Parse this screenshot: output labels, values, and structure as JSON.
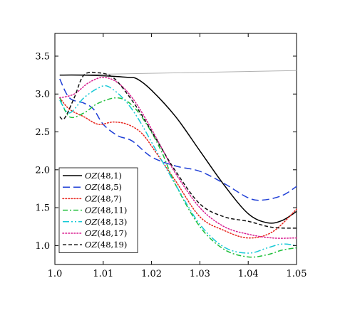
{
  "chart_data": {
    "type": "line",
    "title": "",
    "xlabel": "",
    "ylabel": "",
    "xlim": [
      1.0,
      1.05
    ],
    "ylim": [
      0.75,
      3.8
    ],
    "x_ticks": [
      1.0,
      1.01,
      1.02,
      1.03,
      1.04,
      1.05
    ],
    "x_tick_labels": [
      "1.0",
      "1.01",
      "1.02",
      "1.03",
      "1.04",
      "1.05"
    ],
    "y_ticks": [
      1.0,
      1.5,
      2.0,
      2.5,
      3.0,
      3.5
    ],
    "y_tick_labels": [
      "1.0",
      "1.5",
      "2.0",
      "2.5",
      "3.0",
      "3.5"
    ],
    "grid": false,
    "legend_position": "lower-left",
    "reference_line": {
      "color": "#b0b0b0",
      "x": [
        1.001,
        1.05
      ],
      "y": [
        3.25,
        3.31
      ]
    },
    "series": [
      {
        "name": "OZ(48,1)",
        "name_italic": "OZ",
        "name_rest": "(48,1)",
        "color": "#000000",
        "dash": "solid",
        "x": [
          1.001,
          1.005,
          1.01,
          1.015,
          1.017,
          1.02,
          1.025,
          1.03,
          1.035,
          1.04,
          1.044,
          1.047,
          1.05
        ],
        "y": [
          3.25,
          3.25,
          3.24,
          3.22,
          3.2,
          3.05,
          2.7,
          2.25,
          1.8,
          1.42,
          1.3,
          1.33,
          1.45
        ]
      },
      {
        "name": "OZ(48,5)",
        "name_italic": "OZ",
        "name_rest": "(48,5)",
        "color": "#1f3fd6",
        "dash": "long-dash",
        "x": [
          1.001,
          1.003,
          1.006,
          1.008,
          1.01,
          1.013,
          1.016,
          1.02,
          1.025,
          1.03,
          1.035,
          1.04,
          1.043,
          1.047,
          1.05
        ],
        "y": [
          3.2,
          2.95,
          2.88,
          2.8,
          2.6,
          2.45,
          2.38,
          2.17,
          2.05,
          1.98,
          1.82,
          1.63,
          1.6,
          1.66,
          1.78
        ]
      },
      {
        "name": "OZ(48,7)",
        "name_italic": "OZ",
        "name_rest": "(48,7)",
        "color": "#e8221a",
        "dash": "dotted",
        "x": [
          1.001,
          1.003,
          1.006,
          1.009,
          1.012,
          1.015,
          1.018,
          1.021,
          1.025,
          1.03,
          1.035,
          1.04,
          1.045,
          1.05
        ],
        "y": [
          2.95,
          2.8,
          2.7,
          2.6,
          2.63,
          2.6,
          2.48,
          2.22,
          1.85,
          1.38,
          1.2,
          1.1,
          1.18,
          1.48
        ]
      },
      {
        "name": "OZ(48,11)",
        "name_italic": "OZ",
        "name_rest": "(48,11)",
        "color": "#1fbf3a",
        "dash": "dash-dot",
        "x": [
          1.001,
          1.003,
          1.006,
          1.009,
          1.013,
          1.016,
          1.019,
          1.022,
          1.025,
          1.03,
          1.035,
          1.04,
          1.044,
          1.047,
          1.05
        ],
        "y": [
          2.95,
          2.7,
          2.75,
          2.88,
          2.95,
          2.85,
          2.6,
          2.25,
          1.8,
          1.25,
          0.95,
          0.85,
          0.88,
          0.94,
          0.97
        ]
      },
      {
        "name": "OZ(48,13)",
        "name_italic": "OZ",
        "name_rest": "(48,13)",
        "color": "#17c9d6",
        "dash": "dash-dot-dot",
        "x": [
          1.001,
          1.003,
          1.006,
          1.009,
          1.011,
          1.014,
          1.017,
          1.021,
          1.025,
          1.03,
          1.035,
          1.04,
          1.044,
          1.047,
          1.05
        ],
        "y": [
          2.92,
          2.75,
          2.95,
          3.08,
          3.1,
          2.95,
          2.7,
          2.25,
          1.8,
          1.28,
          0.98,
          0.9,
          0.97,
          1.02,
          1.0
        ]
      },
      {
        "name": "OZ(48,17)",
        "name_italic": "OZ",
        "name_rest": "(48,17)",
        "color": "#d81b8f",
        "dash": "dotted",
        "x": [
          1.001,
          1.004,
          1.007,
          1.01,
          1.013,
          1.016,
          1.019,
          1.022,
          1.025,
          1.03,
          1.035,
          1.04,
          1.045,
          1.05
        ],
        "y": [
          2.95,
          3.0,
          3.15,
          3.22,
          3.15,
          2.95,
          2.65,
          2.3,
          1.95,
          1.5,
          1.25,
          1.15,
          1.1,
          1.1
        ]
      },
      {
        "name": "OZ(48,19)",
        "name_italic": "OZ",
        "name_rest": "(48,19)",
        "color": "#111111",
        "dash": "short-dash",
        "x": [
          1.001,
          1.002,
          1.004,
          1.006,
          1.009,
          1.012,
          1.015,
          1.018,
          1.021,
          1.025,
          1.03,
          1.035,
          1.04,
          1.045,
          1.05
        ],
        "y": [
          2.7,
          2.68,
          2.95,
          3.25,
          3.28,
          3.22,
          3.0,
          2.72,
          2.4,
          1.98,
          1.55,
          1.38,
          1.32,
          1.24,
          1.23
        ]
      }
    ]
  }
}
